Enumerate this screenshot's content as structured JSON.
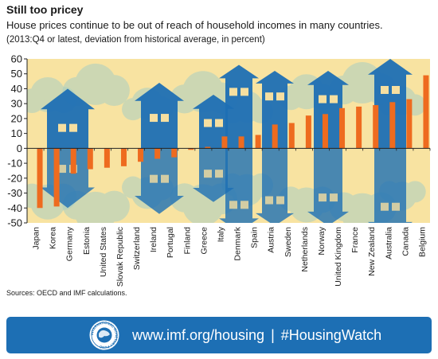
{
  "title": "Still too pricey",
  "subtitle": "House prices continue to be out of reach of household incomes in many countries.",
  "note": "(2013:Q4 or latest, deviation from historical average, in percent)",
  "sources": "Sources: OECD and IMF calculations.",
  "banner": {
    "url": "www.imf.org/housing",
    "separator": "|",
    "hashtag": "#HousingWatch",
    "logo_icon": "imf-seal-icon",
    "logo_text": "INTERNATIONAL MONETARY FUND"
  },
  "colors": {
    "bar": "#ee6b1f",
    "background": "#f8e3a1",
    "house": "#1d6fb4",
    "banner": "#1d6fb4"
  },
  "chart_data": {
    "type": "bar",
    "categories": [
      "Japan",
      "Korea",
      "Germany",
      "Estonia",
      "United States",
      "Slovak Republic",
      "Switzerland",
      "Ireland",
      "Portugal",
      "Finland",
      "Greece",
      "Italy",
      "Denmark",
      "Spain",
      "Austria",
      "Sweden",
      "Netherlands",
      "Norway",
      "United Kingdom",
      "France",
      "New Zealand",
      "Australia",
      "Canada",
      "Belgium"
    ],
    "values": [
      -40,
      -39,
      -17,
      -14,
      -13,
      -12,
      -9,
      -7,
      -6,
      -1,
      1,
      8,
      8,
      9,
      16,
      17,
      22,
      23,
      27,
      28,
      29,
      31,
      33,
      49
    ],
    "ylim": [
      -50,
      60
    ],
    "yticks": [
      -50,
      -40,
      -30,
      -20,
      -10,
      0,
      10,
      20,
      30,
      40,
      50,
      60
    ],
    "grid": false
  }
}
